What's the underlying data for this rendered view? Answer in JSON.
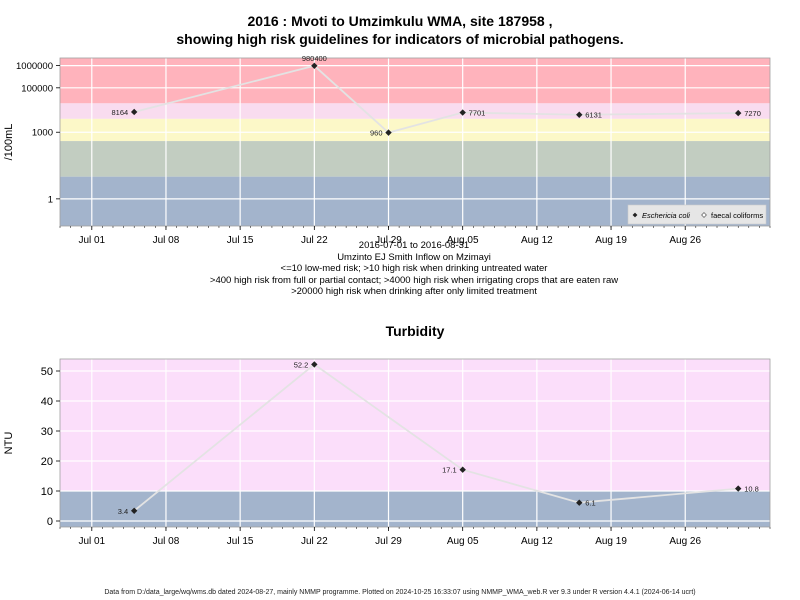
{
  "title": {
    "line1": "2016 : Mvoti to Umzimkulu WMA, site 187958 ,",
    "line2": "showing high risk guidelines for indicators of microbial pathogens."
  },
  "info": {
    "date_range": "2016-07-01 to 2016-08-31",
    "site_name": "Umzinto EJ Smith Inflow on Mzimayi",
    "guideline_1": "<=10 low-med risk; >10 high risk when drinking untreated water",
    "guideline_2": ">400 high risk from full or partial contact; >4000 high risk when irrigating crops that are eaten raw",
    "guideline_3": ">20000 high risk when drinking after only limited treatment"
  },
  "footer": "Data from D:/data_large/wq/wms.db dated 2024-08-27, mainly NMMP programme. Plotted on 2024-10-25 16:33:07 using NMMP_WMA_web.R ver 9.3 under R version 4.4.1 (2024-06-14 ucrt)",
  "colors": {
    "red": "#ffb3bc",
    "pink": "#f9dcef",
    "yellow": "#fcf8c8",
    "green": "#c2cdc1",
    "blue": "#a3b4cc",
    "turbidity_bg": "#fbdefa",
    "grid": "#ffffff",
    "line": "#e3e3e3",
    "point": "#222222"
  },
  "chart_data": [
    {
      "type": "line",
      "title": "",
      "ylabel": "/100mL",
      "xlabel": "",
      "y_scale": "log",
      "ylim": [
        0.06,
        2200000
      ],
      "xlim": [
        "2016-06-28",
        "2016-09-03"
      ],
      "x_ticks": [
        "2016-07-01",
        "2016-07-08",
        "2016-07-15",
        "2016-07-22",
        "2016-07-29",
        "2016-08-05",
        "2016-08-12",
        "2016-08-19",
        "2016-08-26"
      ],
      "x_tick_labels": [
        "Jul 01",
        "Jul 08",
        "Jul 15",
        "Jul 22",
        "Jul 29",
        "Aug 05",
        "Aug 12",
        "Aug 19",
        "Aug 26"
      ],
      "y_ticks": [
        1,
        1000,
        100000,
        1000000
      ],
      "y_tick_labels": [
        "1",
        "1000",
        "100000",
        "1000000"
      ],
      "risk_bands": [
        {
          "from": 20000,
          "to": 2200000,
          "color": "red"
        },
        {
          "from": 4000,
          "to": 20000,
          "color": "pink"
        },
        {
          "from": 400,
          "to": 4000,
          "color": "yellow"
        },
        {
          "from": 10,
          "to": 400,
          "color": "green"
        },
        {
          "from": 0.06,
          "to": 10,
          "color": "blue"
        }
      ],
      "series": [
        {
          "name": "Eschericia coli",
          "x": [
            "2016-07-05",
            "2016-07-22",
            "2016-07-29",
            "2016-08-05",
            "2016-08-16",
            "2016-08-31"
          ],
          "y": [
            8164,
            980400,
            960,
            7701,
            6131,
            7270
          ],
          "labels": [
            "8164",
            "980400",
            "960",
            "7701",
            "6131",
            "7270"
          ],
          "label_side": [
            "left",
            "above",
            "left",
            "right",
            "right",
            "right"
          ]
        },
        {
          "name": "faecal coliforms",
          "x": [],
          "y": []
        }
      ],
      "legend_position": "bottom-right"
    },
    {
      "type": "line",
      "title": "Turbidity",
      "ylabel": "NTU",
      "xlabel": "",
      "ylim": [
        -2,
        54
      ],
      "xlim": [
        "2016-06-28",
        "2016-09-03"
      ],
      "x_ticks": [
        "2016-07-01",
        "2016-07-08",
        "2016-07-15",
        "2016-07-22",
        "2016-07-29",
        "2016-08-05",
        "2016-08-12",
        "2016-08-19",
        "2016-08-26"
      ],
      "x_tick_labels": [
        "Jul 01",
        "Jul 08",
        "Jul 15",
        "Jul 22",
        "Jul 29",
        "Aug 05",
        "Aug 12",
        "Aug 19",
        "Aug 26"
      ],
      "y_ticks": [
        0,
        10,
        20,
        30,
        40,
        50
      ],
      "y_tick_labels": [
        "0",
        "10",
        "20",
        "30",
        "40",
        "50"
      ],
      "risk_bands": [
        {
          "from": 10,
          "to": 54,
          "color": "turbidity_bg"
        },
        {
          "from": -2,
          "to": 10,
          "color": "blue"
        }
      ],
      "series": [
        {
          "x": [
            "2016-07-05",
            "2016-07-22",
            "2016-08-05",
            "2016-08-16",
            "2016-08-31"
          ],
          "y": [
            3.4,
            52.2,
            17.1,
            6.1,
            10.8
          ],
          "labels": [
            "3.4",
            "52.2",
            "17.1",
            "6.1",
            "10.8"
          ],
          "label_side": [
            "left",
            "left",
            "left",
            "right",
            "right"
          ]
        }
      ]
    }
  ]
}
